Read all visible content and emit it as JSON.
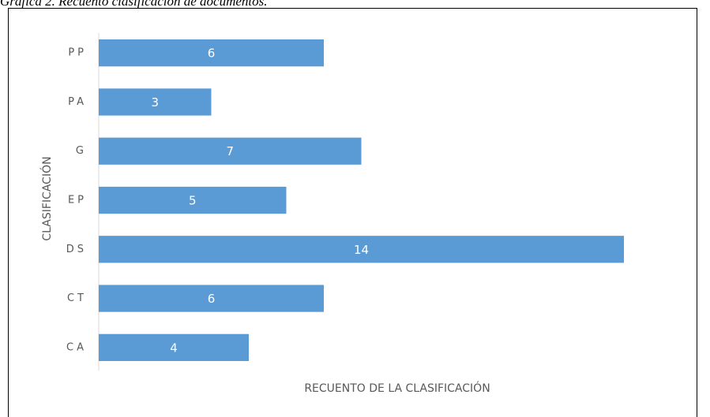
{
  "chart_data": {
    "type": "bar",
    "orientation": "horizontal",
    "title": "Gráfica 2. Recuento clasificación de documentos.",
    "categories": [
      "PP",
      "PA",
      "G",
      "EP",
      "DS",
      "CT",
      "CA"
    ],
    "values": [
      6,
      3,
      7,
      5,
      14,
      6,
      4
    ],
    "color": "#5b9bd5",
    "xlim": [
      0,
      16
    ],
    "x_label": "RECUENTO DE LA CLASIFICACIÓN",
    "y_label": "CLASIFICACIÓN"
  }
}
